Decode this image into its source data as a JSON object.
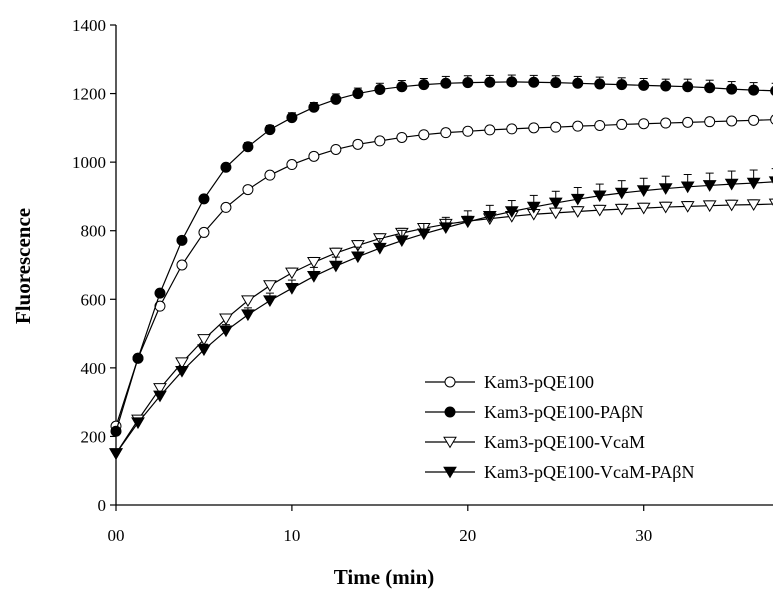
{
  "chart_data": {
    "type": "line",
    "title": "",
    "xlabel": "Time (min)",
    "ylabel": "Fluorescence",
    "xlim": [
      0,
      37
    ],
    "ylim": [
      0,
      1400
    ],
    "xticks": [
      0,
      10,
      20,
      30
    ],
    "xtick_labels": [
      "00",
      "10",
      "20",
      "30"
    ],
    "yticks": [
      0,
      200,
      400,
      600,
      800,
      1000,
      1200,
      1400
    ],
    "grid": false,
    "legend_position": "bottom-right",
    "x": [
      0,
      1.25,
      2.5,
      3.75,
      5,
      6.25,
      7.5,
      8.75,
      10,
      11.25,
      12.5,
      13.75,
      15,
      16.25,
      17.5,
      18.75,
      20,
      21.25,
      22.5,
      23.75,
      25,
      26.25,
      27.5,
      28.75,
      30,
      31.25,
      32.5,
      33.75,
      35,
      36.25,
      37.5
    ],
    "series": [
      {
        "name": "Kam3-pQE100",
        "marker": "circle-open",
        "values": [
          230,
          428,
          580,
          700,
          795,
          868,
          920,
          962,
          993,
          1017,
          1037,
          1052,
          1062,
          1072,
          1080,
          1086,
          1090,
          1094,
          1097,
          1100,
          1102,
          1105,
          1107,
          1110,
          1112,
          1114,
          1116,
          1118,
          1120,
          1122,
          1124
        ],
        "errors": [
          10,
          10,
          10,
          10,
          10,
          10,
          10,
          10,
          10,
          10,
          10,
          10,
          10,
          10,
          10,
          10,
          10,
          10,
          10,
          10,
          10,
          10,
          10,
          10,
          10,
          10,
          10,
          10,
          10,
          10,
          10
        ]
      },
      {
        "name": "Kam3-pQE100-PAβN",
        "marker": "circle-filled",
        "values": [
          215,
          428,
          618,
          772,
          893,
          985,
          1045,
          1095,
          1130,
          1160,
          1183,
          1200,
          1212,
          1220,
          1226,
          1230,
          1232,
          1233,
          1234,
          1233,
          1232,
          1230,
          1228,
          1226,
          1224,
          1222,
          1220,
          1217,
          1213,
          1210,
          1208
        ],
        "errors": [
          8,
          8,
          10,
          10,
          10,
          10,
          12,
          12,
          14,
          14,
          16,
          16,
          18,
          18,
          18,
          20,
          20,
          20,
          20,
          20,
          20,
          20,
          20,
          20,
          20,
          20,
          22,
          22,
          22,
          22,
          22
        ]
      },
      {
        "name": "Kam3-pQE100-VcaM",
        "marker": "triangle-open",
        "values": [
          150,
          248,
          340,
          415,
          483,
          543,
          596,
          640,
          677,
          708,
          735,
          757,
          777,
          793,
          807,
          819,
          828,
          835,
          842,
          848,
          852,
          856,
          860,
          863,
          866,
          869,
          871,
          873,
          875,
          876,
          878
        ],
        "errors": [
          8,
          8,
          10,
          10,
          10,
          12,
          12,
          12,
          14,
          14,
          14,
          14,
          14,
          14,
          14,
          14,
          14,
          14,
          14,
          14,
          14,
          14,
          14,
          14,
          14,
          14,
          14,
          14,
          14,
          14,
          14
        ]
      },
      {
        "name": "Kam3-pQE100-VcaM-PAβN",
        "marker": "triangle-filled",
        "values": [
          150,
          240,
          318,
          390,
          453,
          508,
          555,
          596,
          632,
          667,
          697,
          724,
          749,
          771,
          791,
          809,
          826,
          842,
          856,
          869,
          881,
          892,
          902,
          910,
          917,
          923,
          928,
          932,
          936,
          939,
          943
        ],
        "errors": [
          8,
          10,
          12,
          14,
          16,
          18,
          20,
          22,
          24,
          26,
          26,
          28,
          28,
          30,
          30,
          30,
          32,
          32,
          32,
          34,
          34,
          34,
          34,
          36,
          36,
          36,
          36,
          36,
          38,
          38,
          38
        ]
      }
    ]
  }
}
